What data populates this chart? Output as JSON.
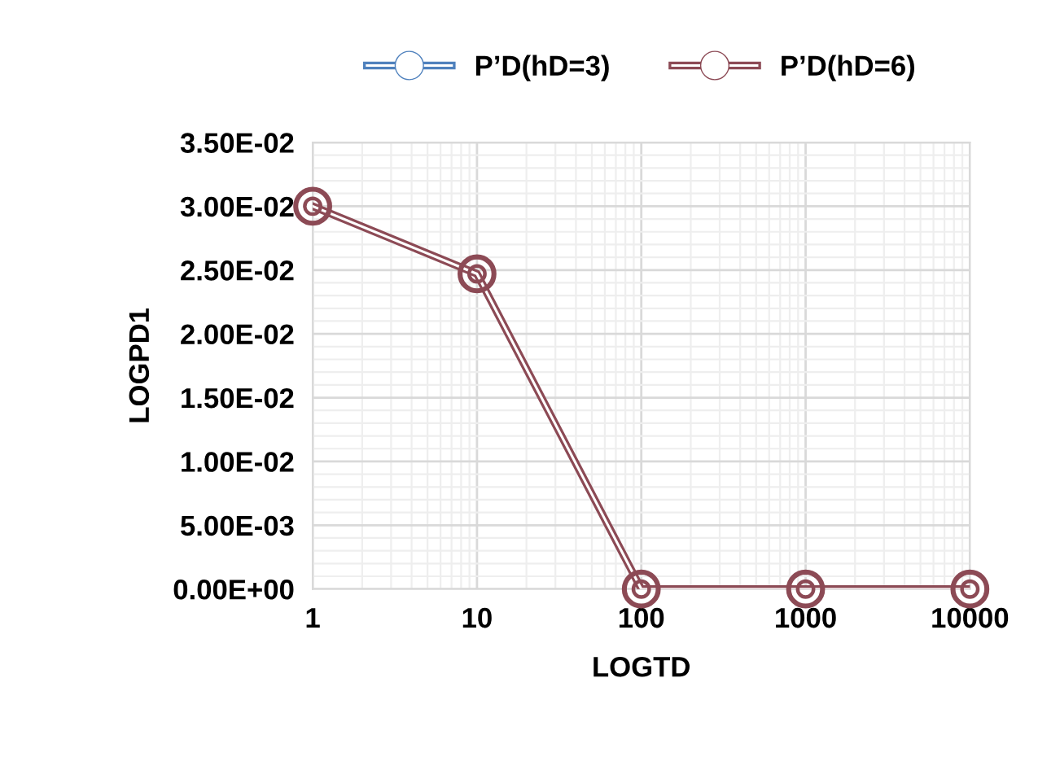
{
  "chart_data": {
    "type": "line",
    "xlabel": "LOGTD",
    "ylabel": "LOGPD1",
    "x": [
      1,
      10,
      100,
      1000,
      10000
    ],
    "series": [
      {
        "name": "P’D(hD=3)",
        "color": "#4f81bd",
        "values": [
          null,
          null,
          null,
          null,
          null
        ]
      },
      {
        "name": "P’D(hD=6)",
        "color": "#8c4a55",
        "values": [
          0.03,
          0.0247,
          0,
          0,
          0
        ]
      }
    ],
    "log": "x",
    "xlim": [
      1,
      10000
    ],
    "xticks": [
      1,
      10,
      100,
      1000,
      10000
    ],
    "ylim": [
      0,
      0.035
    ],
    "yticks": [
      {
        "value": 0,
        "label": "0.00E+00"
      },
      {
        "value": 0.005,
        "label": "5.00E-03"
      },
      {
        "value": 0.01,
        "label": "1.00E-02"
      },
      {
        "value": 0.015,
        "label": "1.50E-02"
      },
      {
        "value": 0.02,
        "label": "2.00E-02"
      },
      {
        "value": 0.025,
        "label": "2.50E-02"
      },
      {
        "value": 0.03,
        "label": "3.00E-02"
      },
      {
        "value": 0.035,
        "label": "3.50E-02"
      }
    ],
    "grid": true,
    "legend": "top",
    "marker": "circle",
    "line_style": "solid"
  }
}
